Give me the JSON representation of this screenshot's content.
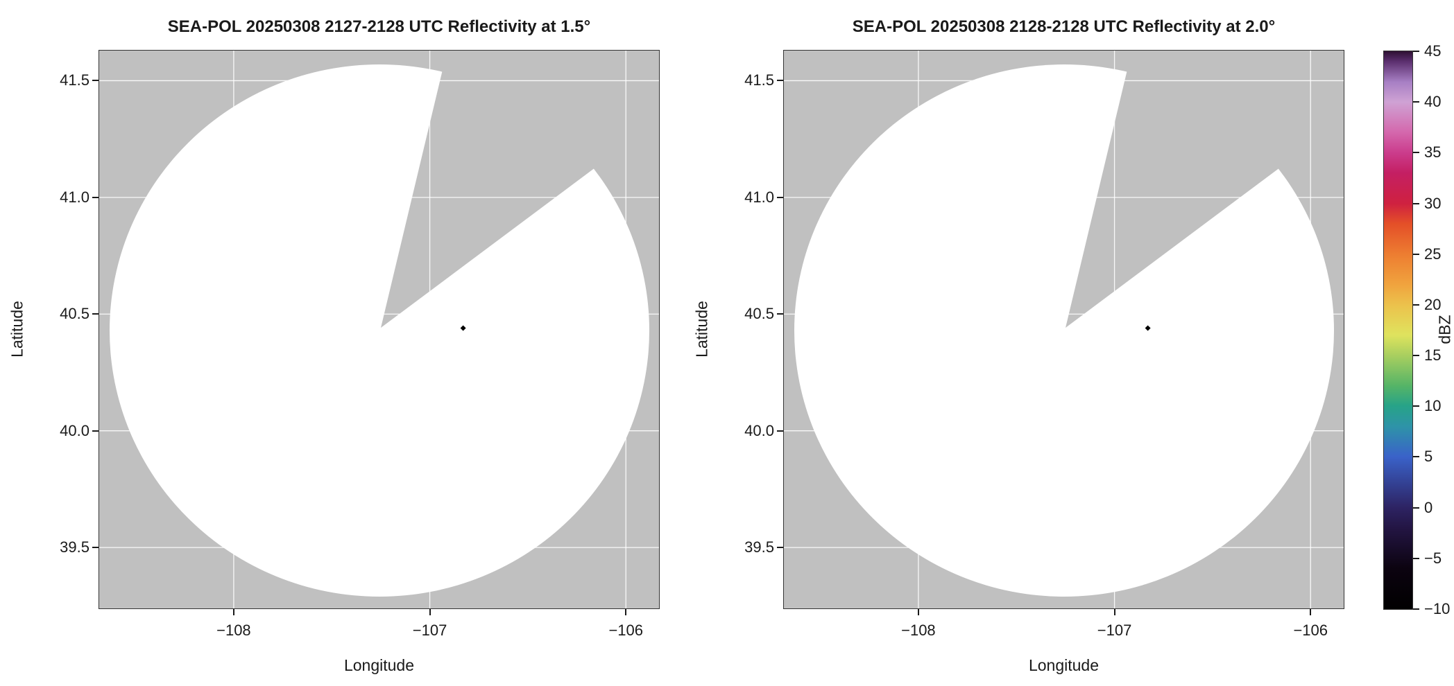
{
  "colors": {
    "background": "#ffffff",
    "panel_gray": "#c0c0c0",
    "grid": "#ffffff",
    "spine": "#333333",
    "text": "#1a1a1a",
    "dot": "#000000"
  },
  "plots": [
    {
      "title": "SEA-POL 20250308 2127-2128 UTC Reflectivity at 1.5°",
      "xlabel": "Longitude",
      "ylabel": "Latitude"
    },
    {
      "title": "SEA-POL 20250308 2128-2128 UTC Reflectivity at 2.0°",
      "xlabel": "Longitude",
      "ylabel": "Latitude"
    }
  ],
  "colorbar": {
    "label": "dBZ",
    "min": -10,
    "max": 45,
    "ticks": [
      45,
      40,
      35,
      30,
      25,
      20,
      15,
      10,
      5,
      0,
      -5,
      -10
    ],
    "tick_labels": [
      "45",
      "40",
      "35",
      "30",
      "25",
      "20",
      "15",
      "10",
      "5",
      "0",
      "−5",
      "−10"
    ],
    "stops": [
      [
        -10,
        "#000000"
      ],
      [
        -6,
        "#0c0310"
      ],
      [
        -2,
        "#231543"
      ],
      [
        0,
        "#2d2363"
      ],
      [
        5,
        "#3a62c9"
      ],
      [
        8,
        "#2e93a8"
      ],
      [
        10,
        "#27a388"
      ],
      [
        12,
        "#55b467"
      ],
      [
        15,
        "#a9cf5f"
      ],
      [
        17,
        "#dfe35e"
      ],
      [
        20,
        "#ecc24c"
      ],
      [
        22,
        "#f0a33e"
      ],
      [
        25,
        "#ed7d31"
      ],
      [
        28,
        "#e44f28"
      ],
      [
        30,
        "#cf2140"
      ],
      [
        33,
        "#c41f63"
      ],
      [
        35,
        "#cb3c8c"
      ],
      [
        37,
        "#d468ad"
      ],
      [
        40,
        "#cfa2d4"
      ],
      [
        42,
        "#a77fc4"
      ],
      [
        44,
        "#5b2f6e"
      ],
      [
        45,
        "#2e1033"
      ]
    ]
  },
  "chart_data": [
    {
      "type": "heatmap",
      "subtype": "radar_ppi",
      "title": "SEA-POL 20250308 2127-2128 UTC Reflectivity at 1.5°",
      "xlabel": "Longitude",
      "ylabel": "Latitude",
      "xlim": [
        -108.686,
        -105.831
      ],
      "ylim": [
        39.239,
        41.629
      ],
      "x_ticks": [
        -108,
        -107,
        -106
      ],
      "x_tick_labels": [
        "−108",
        "−107",
        "−106"
      ],
      "y_ticks": [
        41.5,
        41.0,
        40.5,
        40.0,
        39.5
      ],
      "y_tick_labels": [
        "41.5",
        "41.0",
        "40.5",
        "40.0",
        "39.5"
      ],
      "radar_center": {
        "lon": -107.26,
        "lat": 40.43
      },
      "coverage_radius_deg_lon": 1.38,
      "coverage_radius_deg_lat": 1.14,
      "missing_sector_azimuth_deg": [
        14,
        53
      ],
      "points": [
        {
          "lon": -106.83,
          "lat": 40.44,
          "dbz": -10
        }
      ],
      "colorbar_label": "dBZ",
      "colorbar_range": [
        -10,
        45
      ],
      "grid": true,
      "legend": "none"
    },
    {
      "type": "heatmap",
      "subtype": "radar_ppi",
      "title": "SEA-POL 20250308 2128-2128 UTC Reflectivity at 2.0°",
      "xlabel": "Longitude",
      "ylabel": "Latitude",
      "xlim": [
        -108.686,
        -105.831
      ],
      "ylim": [
        39.239,
        41.629
      ],
      "x_ticks": [
        -108,
        -107,
        -106
      ],
      "x_tick_labels": [
        "−108",
        "−107",
        "−106"
      ],
      "y_ticks": [
        41.5,
        41.0,
        40.5,
        40.0,
        39.5
      ],
      "y_tick_labels": [
        "41.5",
        "41.0",
        "40.5",
        "40.0",
        "39.5"
      ],
      "radar_center": {
        "lon": -107.26,
        "lat": 40.43
      },
      "coverage_radius_deg_lon": 1.38,
      "coverage_radius_deg_lat": 1.14,
      "missing_sector_azimuth_deg": [
        14,
        53
      ],
      "points": [
        {
          "lon": -106.83,
          "lat": 40.44,
          "dbz": -10
        }
      ],
      "colorbar_label": "dBZ",
      "colorbar_range": [
        -10,
        45
      ],
      "grid": true,
      "legend": "none"
    }
  ]
}
